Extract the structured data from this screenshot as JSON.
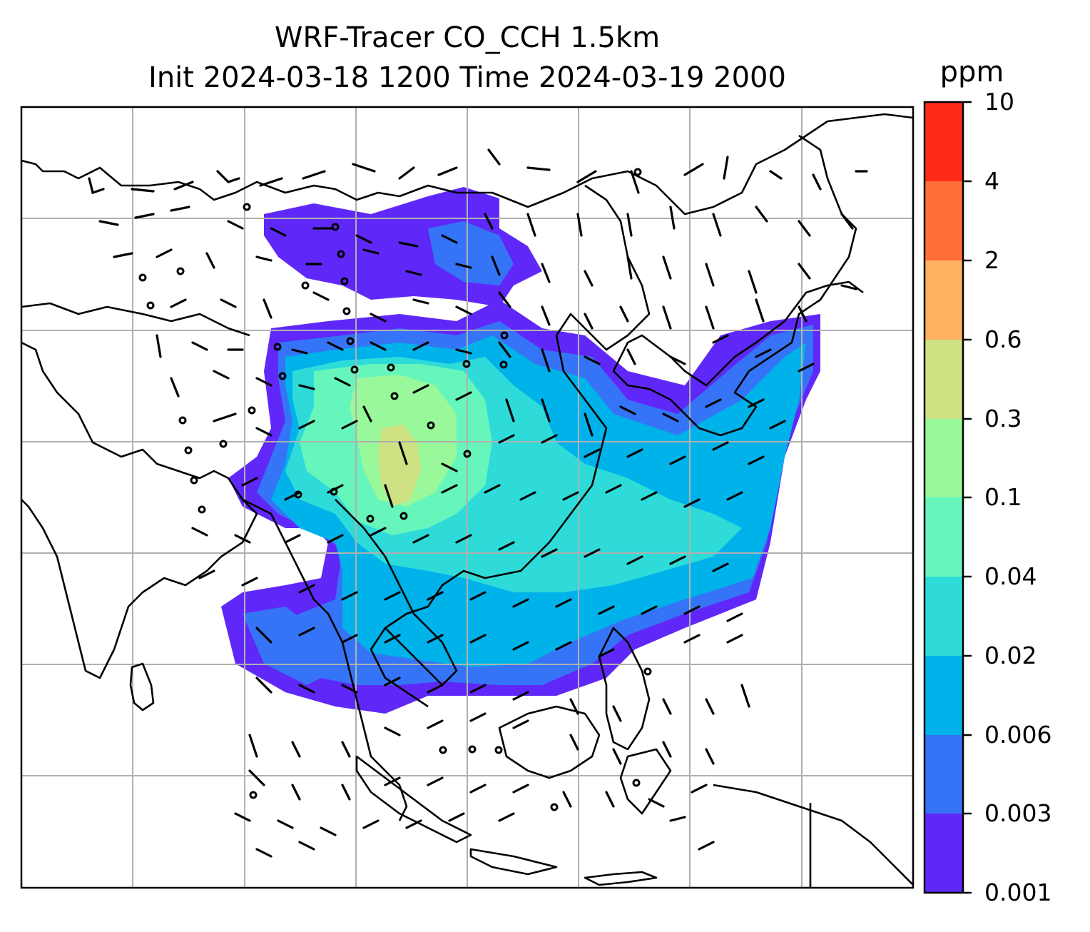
{
  "title": {
    "line1": "WRF-Tracer CO_CCH 1.5km",
    "line2": "Init 2024-03-18 1200 Time 2024-03-19 2000"
  },
  "colorbar": {
    "unit": "ppm",
    "ticks": [
      "10",
      "4",
      "2",
      "0.6",
      "0.3",
      "0.1",
      "0.04",
      "0.02",
      "0.006",
      "0.003",
      "0.001"
    ],
    "colors": [
      "#ff2a16",
      "#ff7038",
      "#ffb060",
      "#cfe283",
      "#98f89a",
      "#66f6bc",
      "#2edbd8",
      "#00b2ea",
      "#3574f6",
      "#6028f8"
    ]
  },
  "map": {
    "gridline_color": "#b0b0b0",
    "coastline_color": "#000000"
  }
}
